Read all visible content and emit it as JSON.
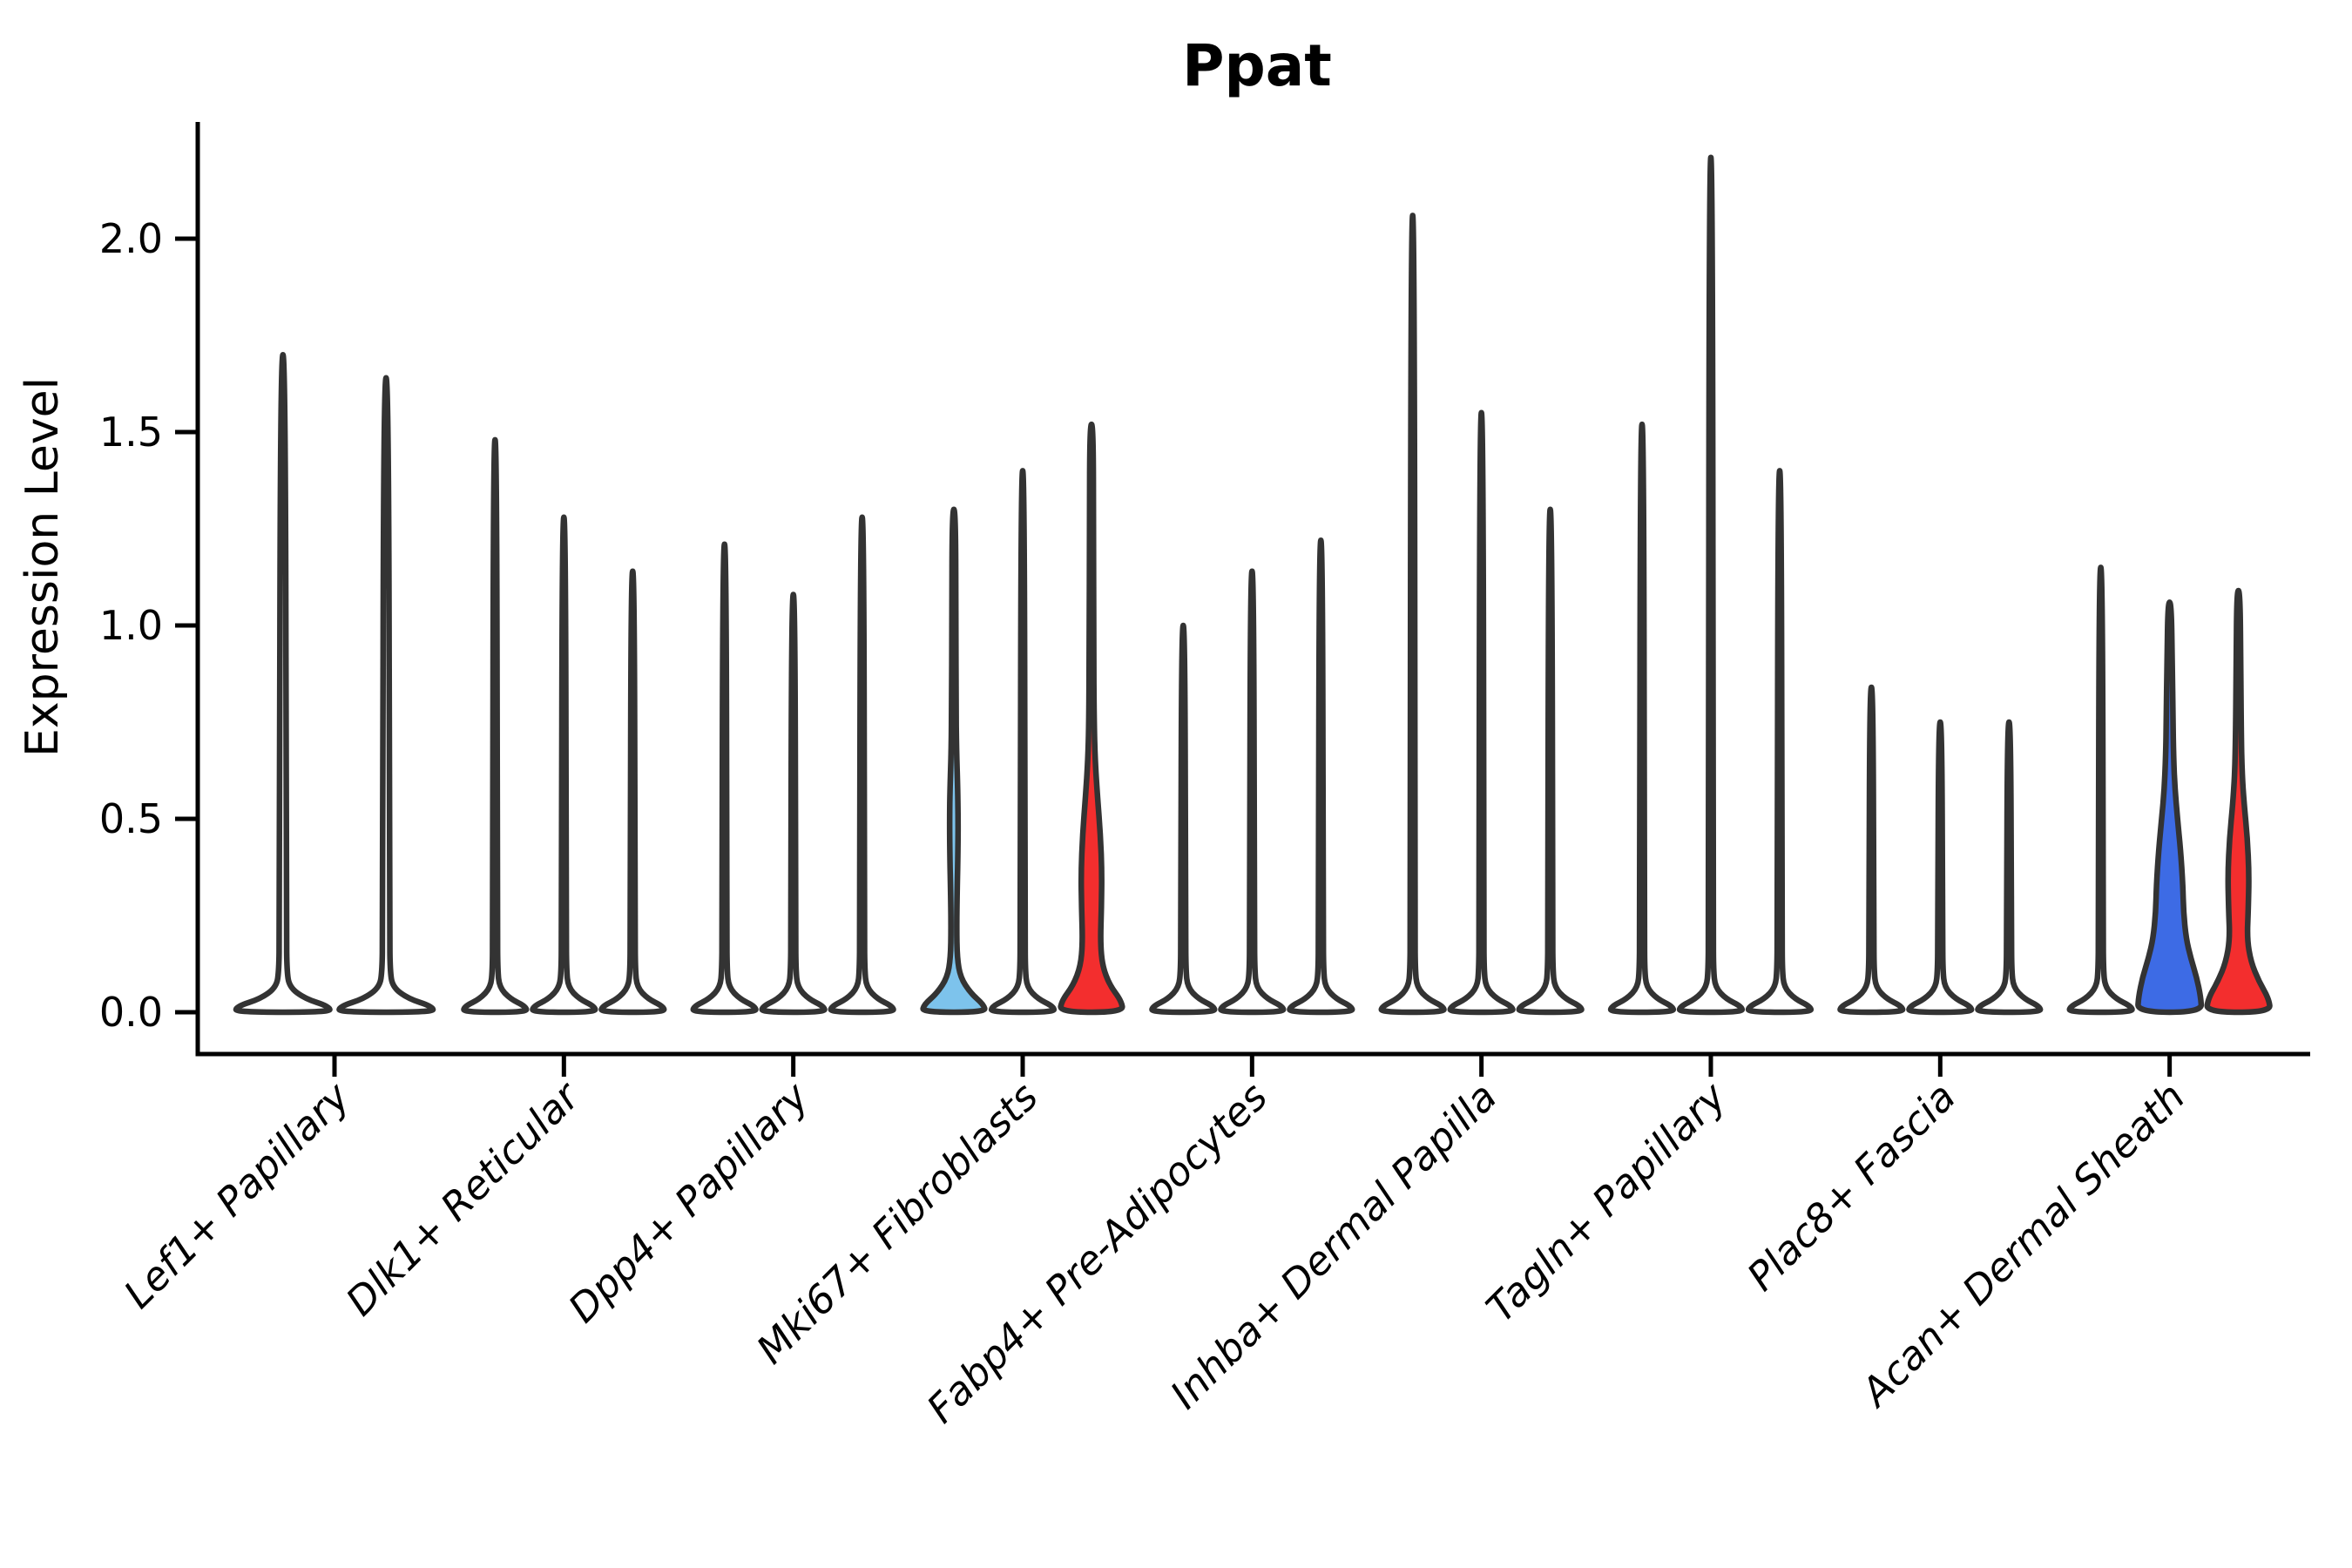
{
  "title": "Ppat",
  "y_axis": {
    "label": "Expression Level",
    "tick_labels": [
      "0.0",
      "0.5",
      "1.0",
      "1.5",
      "2.0"
    ],
    "tick_values": [
      0.0,
      0.5,
      1.0,
      1.5,
      2.0
    ]
  },
  "x_axis": {
    "categories": [
      "Lef1+ Papillary",
      "Dlk1+ Reticular",
      "Dpp4+ Papillary",
      "Mki67+ Fibroblasts",
      "Fabp4+ Pre-Adipocytes",
      "Inhba+ Dermal Papilla",
      "Tagln+ Papillary",
      "Plac8+ Fascia",
      "Acan+ Dermal Sheath"
    ]
  },
  "colors": {
    "background": "#ffffff",
    "axis": "#000000",
    "violin_outline": "#333333",
    "default_violin_fill": "#ffffff",
    "sky_blue_fill": "#7DC3EC",
    "royal_blue_fill": "#3D6BE5",
    "red_fill": "#F32E2E"
  },
  "chart_data": {
    "type": "violin",
    "title": "Ppat",
    "xlabel": "",
    "ylabel": "Expression Level",
    "ylim": [
      0,
      2.3
    ],
    "y_ticks": [
      0.0,
      0.5,
      1.0,
      1.5,
      2.0
    ],
    "grid": false,
    "legend": "none",
    "categories": [
      "Lef1+ Papillary",
      "Dlk1+ Reticular",
      "Dpp4+ Papillary",
      "Mki67+ Fibroblasts",
      "Fabp4+ Pre-Adipocytes",
      "Inhba+ Dermal Papilla",
      "Tagln+ Papillary",
      "Plac8+ Fascia",
      "Acan+ Dermal Sheath"
    ],
    "groups": [
      {
        "category": "Lef1+ Papillary",
        "violins": [
          {
            "max_expression": 1.7,
            "fill": "#ffffff",
            "profile": "default"
          },
          {
            "max_expression": 1.64,
            "fill": "#ffffff",
            "profile": "default"
          }
        ]
      },
      {
        "category": "Dlk1+ Reticular",
        "violins": [
          {
            "max_expression": 1.48,
            "fill": "#ffffff",
            "profile": "default"
          },
          {
            "max_expression": 1.28,
            "fill": "#ffffff",
            "profile": "default"
          },
          {
            "max_expression": 1.14,
            "fill": "#ffffff",
            "profile": "default"
          }
        ]
      },
      {
        "category": "Dpp4+ Papillary",
        "violins": [
          {
            "max_expression": 1.21,
            "fill": "#ffffff",
            "profile": "default"
          },
          {
            "max_expression": 1.08,
            "fill": "#ffffff",
            "profile": "default"
          },
          {
            "max_expression": 1.28,
            "fill": "#ffffff",
            "profile": "default"
          }
        ]
      },
      {
        "category": "Mki67+ Fibroblasts",
        "violins": [
          {
            "max_expression": 1.3,
            "fill": "#7DC3EC",
            "profile": "mki67_blue"
          },
          {
            "max_expression": 1.4,
            "fill": "#ffffff",
            "profile": "default"
          },
          {
            "max_expression": 1.52,
            "fill": "#F32E2E",
            "profile": "mki67_red"
          }
        ]
      },
      {
        "category": "Fabp4+ Pre-Adipocytes",
        "violins": [
          {
            "max_expression": 1.0,
            "fill": "#ffffff",
            "profile": "default"
          },
          {
            "max_expression": 1.14,
            "fill": "#ffffff",
            "profile": "default"
          },
          {
            "max_expression": 1.22,
            "fill": "#ffffff",
            "profile": "default"
          }
        ]
      },
      {
        "category": "Inhba+ Dermal Papilla",
        "violins": [
          {
            "max_expression": 2.06,
            "fill": "#ffffff",
            "profile": "default"
          },
          {
            "max_expression": 1.55,
            "fill": "#ffffff",
            "profile": "default"
          },
          {
            "max_expression": 1.3,
            "fill": "#ffffff",
            "profile": "default"
          }
        ]
      },
      {
        "category": "Tagln+ Papillary",
        "violins": [
          {
            "max_expression": 1.52,
            "fill": "#ffffff",
            "profile": "default"
          },
          {
            "max_expression": 2.21,
            "fill": "#ffffff",
            "profile": "default"
          },
          {
            "max_expression": 1.4,
            "fill": "#ffffff",
            "profile": "default"
          }
        ]
      },
      {
        "category": "Plac8+ Fascia",
        "violins": [
          {
            "max_expression": 0.84,
            "fill": "#ffffff",
            "profile": "default"
          },
          {
            "max_expression": 0.75,
            "fill": "#ffffff",
            "profile": "default"
          },
          {
            "max_expression": 0.75,
            "fill": "#ffffff",
            "profile": "default"
          }
        ]
      },
      {
        "category": "Acan+ Dermal Sheath",
        "violins": [
          {
            "max_expression": 1.15,
            "fill": "#ffffff",
            "profile": "default"
          },
          {
            "max_expression": 1.06,
            "fill": "#3D6BE5",
            "profile": "acan_blue"
          },
          {
            "max_expression": 1.09,
            "fill": "#F32E2E",
            "profile": "acan_red"
          }
        ]
      }
    ],
    "density_profiles": {
      "default": [
        [
          0,
          0.96
        ],
        [
          0.015,
          0.93
        ],
        [
          0.035,
          0.45
        ],
        [
          0.065,
          0.13
        ],
        [
          0.11,
          0.08
        ],
        [
          0.2,
          0.072
        ]
      ],
      "mki67_blue": [
        [
          0,
          0.96
        ],
        [
          0.02,
          0.9
        ],
        [
          0.05,
          0.5
        ],
        [
          0.09,
          0.2
        ],
        [
          0.14,
          0.1
        ],
        [
          0.22,
          0.085
        ],
        [
          0.32,
          0.1
        ],
        [
          0.42,
          0.125
        ],
        [
          0.5,
          0.13
        ],
        [
          0.58,
          0.115
        ],
        [
          0.68,
          0.08
        ],
        [
          0.8,
          0.065
        ],
        [
          1.0,
          0.06
        ],
        [
          1.3,
          0.05
        ]
      ],
      "mki67_red": [
        [
          0,
          0.96
        ],
        [
          0.03,
          0.9
        ],
        [
          0.07,
          0.55
        ],
        [
          0.12,
          0.33
        ],
        [
          0.18,
          0.27
        ],
        [
          0.27,
          0.3
        ],
        [
          0.36,
          0.315
        ],
        [
          0.46,
          0.27
        ],
        [
          0.56,
          0.18
        ],
        [
          0.65,
          0.11
        ],
        [
          0.75,
          0.08
        ],
        [
          0.95,
          0.065
        ],
        [
          1.25,
          0.06
        ],
        [
          1.52,
          0.05
        ]
      ],
      "acan_blue": [
        [
          0,
          0.97
        ],
        [
          0.04,
          0.94
        ],
        [
          0.09,
          0.82
        ],
        [
          0.14,
          0.64
        ],
        [
          0.19,
          0.5
        ],
        [
          0.26,
          0.42
        ],
        [
          0.33,
          0.4
        ],
        [
          0.42,
          0.33
        ],
        [
          0.5,
          0.24
        ],
        [
          0.58,
          0.16
        ],
        [
          0.66,
          0.12
        ],
        [
          0.76,
          0.1
        ],
        [
          0.9,
          0.08
        ],
        [
          1.06,
          0.05
        ]
      ],
      "acan_red": [
        [
          0,
          0.97
        ],
        [
          0.035,
          0.92
        ],
        [
          0.08,
          0.62
        ],
        [
          0.13,
          0.38
        ],
        [
          0.19,
          0.26
        ],
        [
          0.27,
          0.3
        ],
        [
          0.36,
          0.32
        ],
        [
          0.45,
          0.27
        ],
        [
          0.54,
          0.17
        ],
        [
          0.62,
          0.11
        ],
        [
          0.72,
          0.085
        ],
        [
          0.88,
          0.07
        ],
        [
          1.09,
          0.05
        ]
      ]
    }
  }
}
